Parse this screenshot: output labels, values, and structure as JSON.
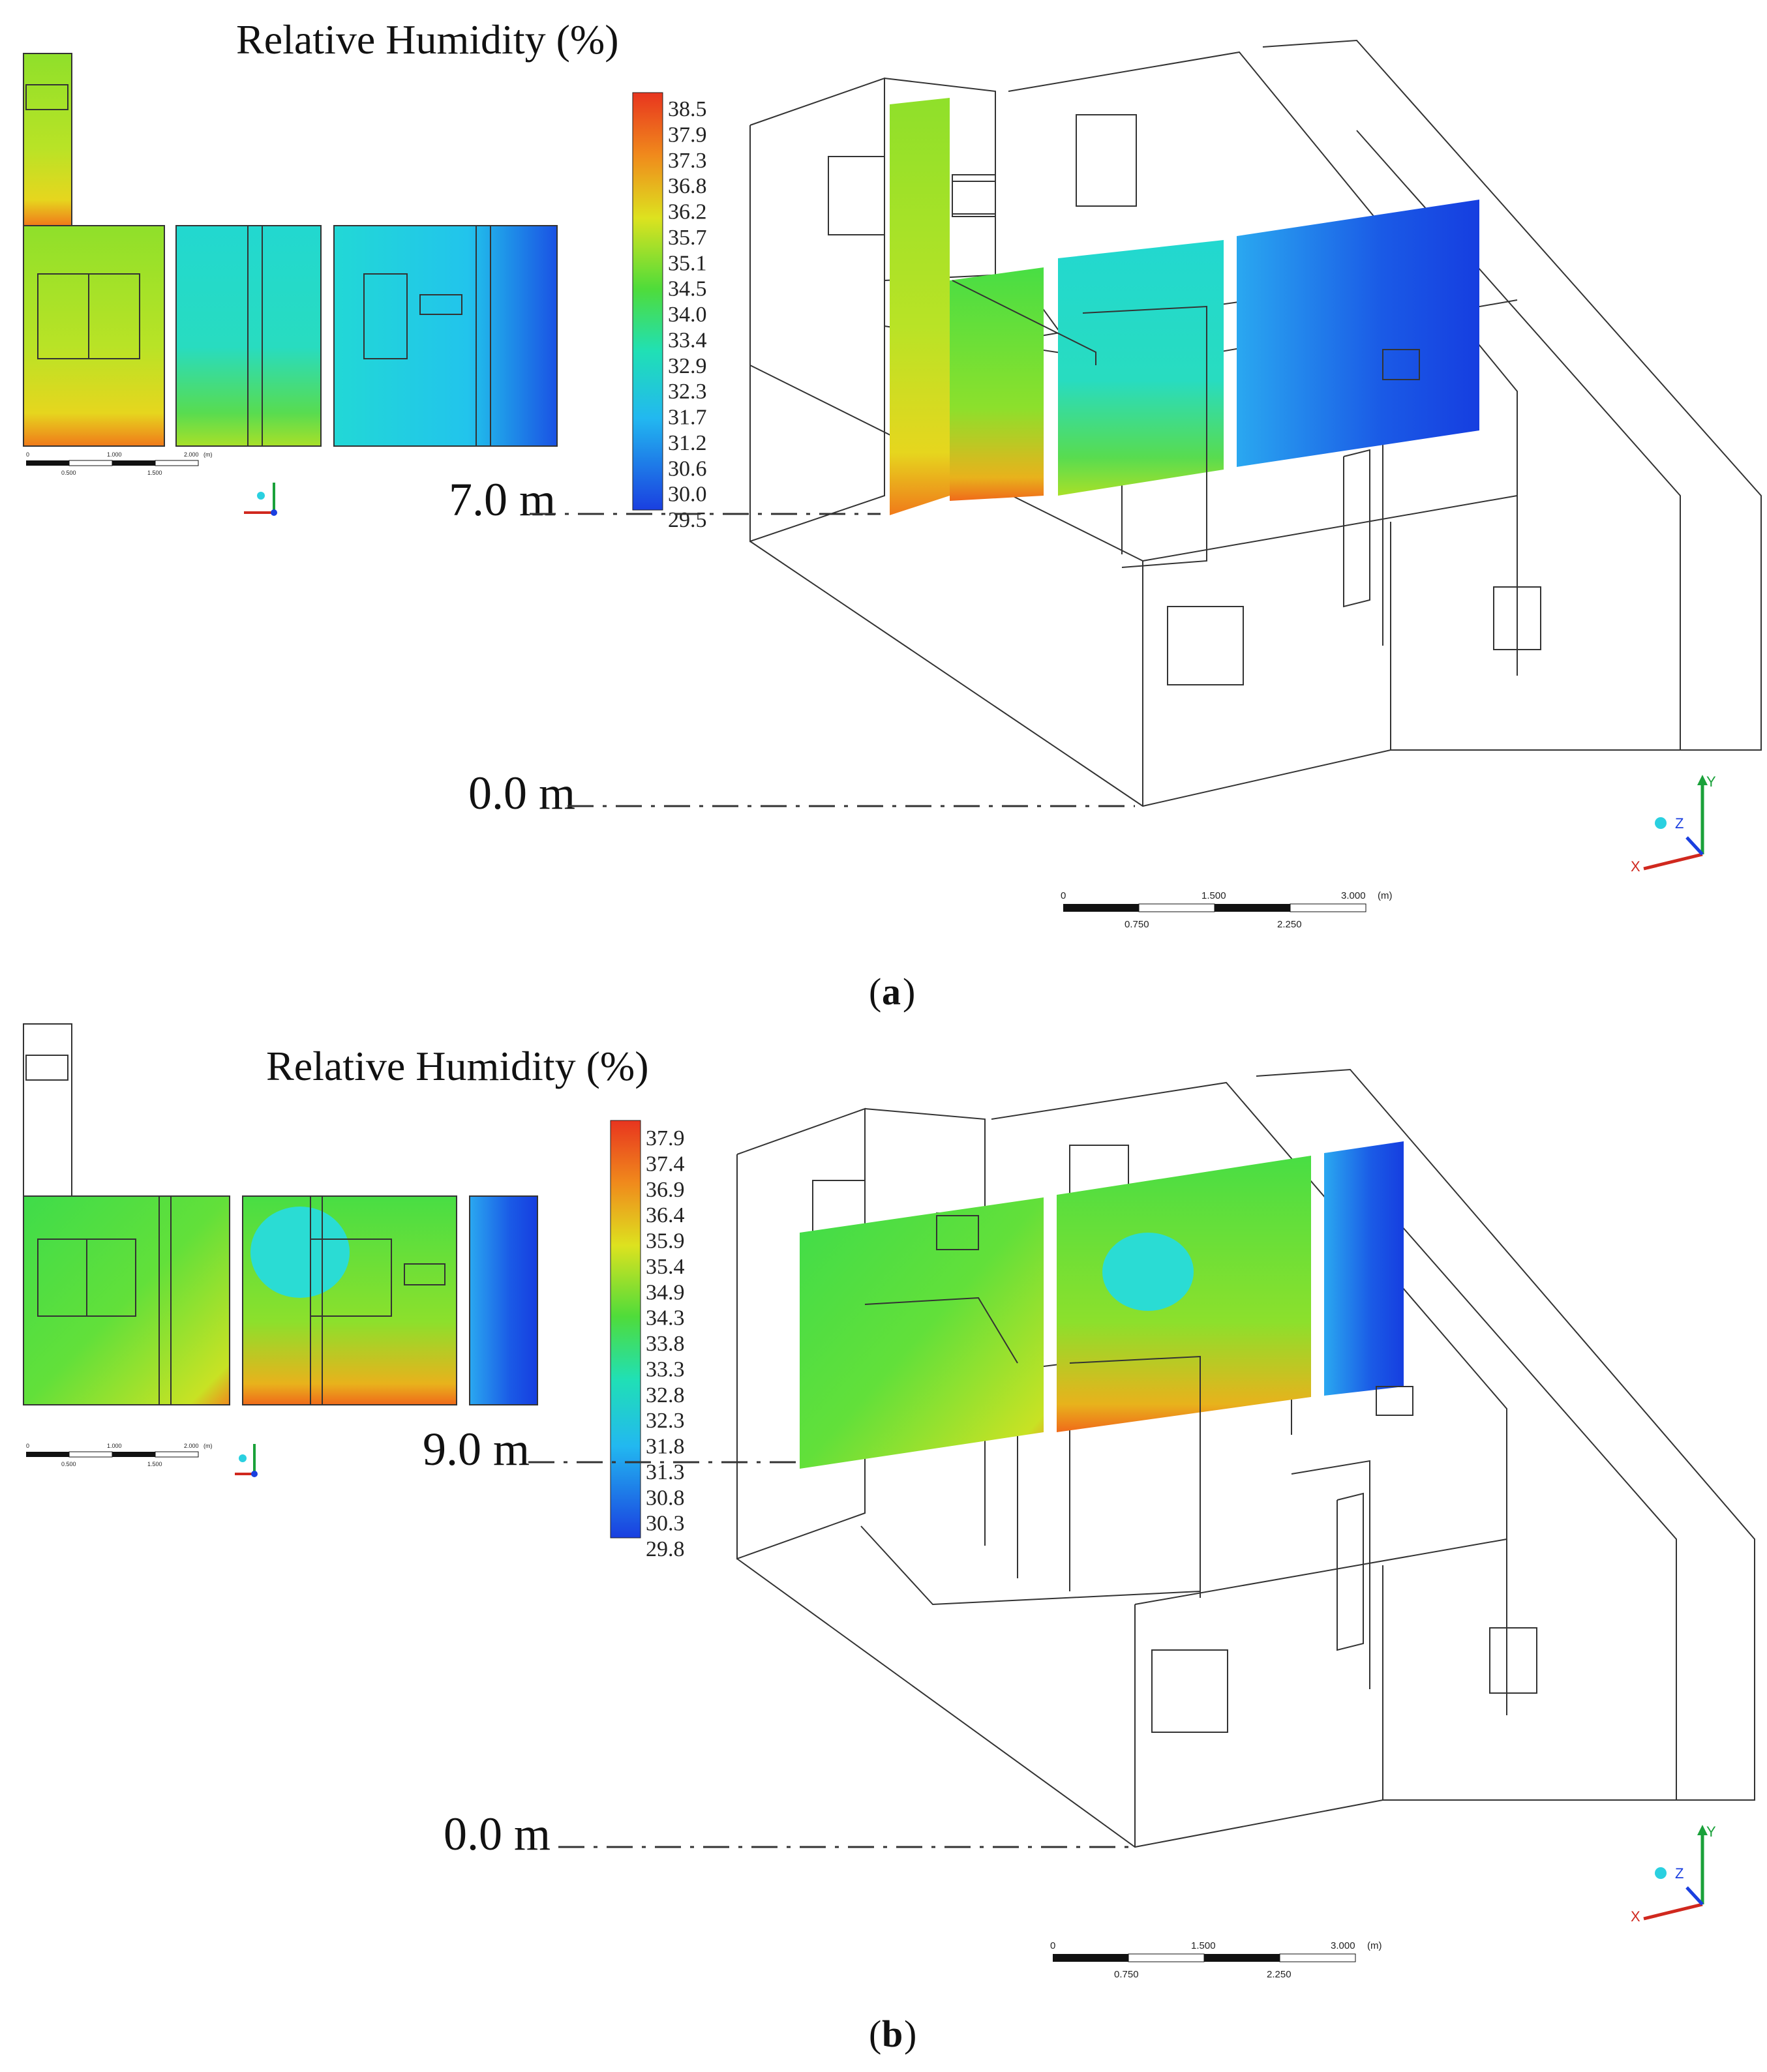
{
  "panels": [
    {
      "id": "a",
      "caption_label": "a",
      "legend_title": "Relative Humidity (%)",
      "legend_ticks": [
        "38.5",
        "37.9",
        "37.3",
        "36.8",
        "36.2",
        "35.7",
        "35.1",
        "34.5",
        "34.0",
        "33.4",
        "32.9",
        "32.3",
        "31.7",
        "31.2",
        "30.6",
        "30.0",
        "29.5"
      ],
      "height_top": "7.0 m",
      "height_bottom": "0.0 m",
      "small_scale": {
        "top": [
          "0",
          "1.000",
          "2.000",
          "(m)"
        ],
        "bottom": [
          "0.500",
          "1.500"
        ]
      },
      "big_scale": {
        "top": [
          "0",
          "1.500",
          "3.000",
          "(m)"
        ],
        "bottom": [
          "0.750",
          "2.250"
        ]
      },
      "axes": {
        "x": "X",
        "y": "Y",
        "z": "Z"
      }
    },
    {
      "id": "b",
      "caption_label": "b",
      "legend_title": "Relative Humidity (%)",
      "legend_ticks": [
        "37.9",
        "37.4",
        "36.9",
        "36.4",
        "35.9",
        "35.4",
        "34.9",
        "34.3",
        "33.8",
        "33.3",
        "32.8",
        "32.3",
        "31.8",
        "31.3",
        "30.8",
        "30.3",
        "29.8"
      ],
      "height_top": "9.0 m",
      "height_bottom": "0.0 m",
      "small_scale": {
        "top": [
          "0",
          "1.000",
          "2.000",
          "(m)"
        ],
        "bottom": [
          "0.500",
          "1.500"
        ]
      },
      "big_scale": {
        "top": [
          "0",
          "1.500",
          "3.000",
          "(m)"
        ],
        "bottom": [
          "0.750",
          "2.250"
        ]
      },
      "axes": {
        "x": "X",
        "y": "Y",
        "z": "Z"
      }
    }
  ],
  "colors": {
    "scale_max": "#e8351f",
    "scale_mid": "#4fdc3a",
    "scale_min": "#1a3fe0",
    "outline": "#333333"
  }
}
